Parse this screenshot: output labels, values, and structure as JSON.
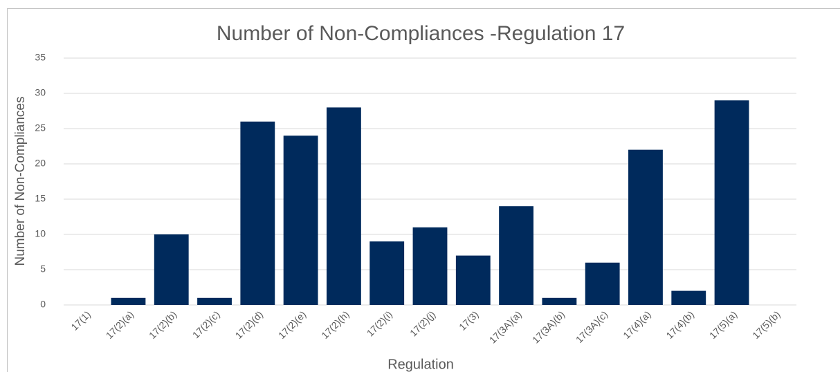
{
  "chart_data": {
    "type": "bar",
    "title": "Number of Non-Compliances -Regulation 17",
    "x_label": "Regulation",
    "y_label": "Number of Non-Compliances",
    "categories": [
      "17(1)",
      "17(2)(a)",
      "17(2)(b)",
      "17(2)(c)",
      "17(2)(d)",
      "17(2)(e)",
      "17(2)(h)",
      "17(2)(i)",
      "17(2)(j)",
      "17(3)",
      "17(3A)(a)",
      "17(3A)(b)",
      "17(3A)(c)",
      "17(4)(a)",
      "17(4)(b)",
      "17(5)(a)",
      "17(5)(b)"
    ],
    "values": [
      0,
      1,
      10,
      1,
      26,
      24,
      28,
      9,
      11,
      7,
      14,
      1,
      6,
      22,
      2,
      29,
      0
    ],
    "color": "#002a5c",
    "ylim": [
      0,
      35
    ],
    "yticks": [
      0,
      5,
      10,
      15,
      20,
      25,
      30,
      35
    ],
    "grid": true
  }
}
